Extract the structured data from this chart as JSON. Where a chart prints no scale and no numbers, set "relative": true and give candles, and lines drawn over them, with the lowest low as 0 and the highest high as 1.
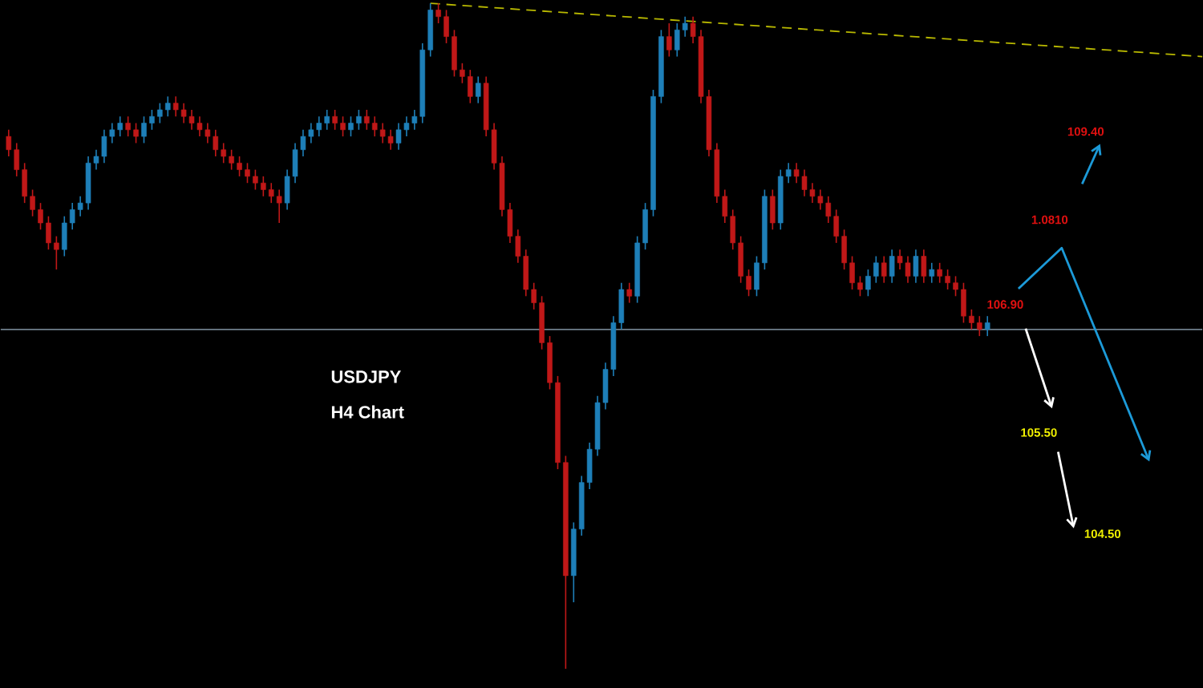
{
  "chart_data": {
    "type": "candlestick",
    "relative": true,
    "title": "USDJPY",
    "subtitle": "H4 Chart",
    "categories": [
      null,
      null,
      null,
      null,
      null,
      null,
      null,
      null,
      null,
      null,
      null,
      null,
      null,
      null,
      null,
      null,
      null,
      null,
      null,
      null,
      null,
      null,
      null,
      null,
      null,
      null,
      null,
      null,
      null,
      null,
      null,
      null,
      null,
      null,
      null,
      null,
      null,
      null,
      null,
      null,
      null,
      null,
      null,
      null,
      null,
      null,
      null,
      null,
      null,
      null,
      null,
      null,
      null,
      null,
      null,
      null,
      null,
      null,
      null,
      null,
      null,
      null,
      null,
      null,
      null,
      null,
      null,
      null,
      null,
      null,
      null,
      null,
      null,
      null,
      null,
      null,
      null,
      null,
      null,
      null,
      null,
      null,
      null,
      null,
      null,
      null,
      null,
      null,
      null,
      null,
      null,
      null,
      null,
      null,
      null,
      null,
      null,
      null,
      null,
      null,
      null,
      null,
      null,
      null,
      null,
      null,
      null,
      null,
      null,
      null,
      null,
      null,
      null,
      null,
      null,
      null,
      null,
      null,
      null,
      null,
      null,
      null,
      null,
      null,
      null,
      null,
      null,
      null,
      null,
      null,
      null,
      null,
      null,
      null,
      null,
      null,
      null,
      null,
      null,
      null,
      null,
      null,
      null,
      null,
      null,
      null,
      null,
      null,
      null,
      null,
      null
    ],
    "ohlc": [
      [
        0.8,
        0.81,
        0.77,
        0.78
      ],
      [
        0.78,
        0.79,
        0.74,
        0.75
      ],
      [
        0.75,
        0.76,
        0.7,
        0.71
      ],
      [
        0.71,
        0.72,
        0.68,
        0.69
      ],
      [
        0.69,
        0.7,
        0.66,
        0.67
      ],
      [
        0.67,
        0.68,
        0.63,
        0.64
      ],
      [
        0.64,
        0.65,
        0.6,
        0.63
      ],
      [
        0.63,
        0.68,
        0.62,
        0.67
      ],
      [
        0.67,
        0.7,
        0.66,
        0.69
      ],
      [
        0.69,
        0.71,
        0.68,
        0.7
      ],
      [
        0.7,
        0.77,
        0.69,
        0.76
      ],
      [
        0.76,
        0.78,
        0.75,
        0.77
      ],
      [
        0.77,
        0.81,
        0.76,
        0.8
      ],
      [
        0.8,
        0.82,
        0.79,
        0.81
      ],
      [
        0.81,
        0.83,
        0.8,
        0.82
      ],
      [
        0.82,
        0.83,
        0.8,
        0.81
      ],
      [
        0.81,
        0.82,
        0.79,
        0.8
      ],
      [
        0.8,
        0.83,
        0.79,
        0.82
      ],
      [
        0.82,
        0.84,
        0.81,
        0.83
      ],
      [
        0.83,
        0.85,
        0.82,
        0.84
      ],
      [
        0.84,
        0.86,
        0.83,
        0.85
      ],
      [
        0.85,
        0.86,
        0.83,
        0.84
      ],
      [
        0.84,
        0.85,
        0.82,
        0.83
      ],
      [
        0.83,
        0.84,
        0.81,
        0.82
      ],
      [
        0.82,
        0.83,
        0.8,
        0.81
      ],
      [
        0.81,
        0.82,
        0.79,
        0.8
      ],
      [
        0.8,
        0.81,
        0.77,
        0.78
      ],
      [
        0.78,
        0.79,
        0.76,
        0.77
      ],
      [
        0.77,
        0.78,
        0.75,
        0.76
      ],
      [
        0.76,
        0.77,
        0.74,
        0.75
      ],
      [
        0.75,
        0.76,
        0.73,
        0.74
      ],
      [
        0.74,
        0.75,
        0.72,
        0.73
      ],
      [
        0.73,
        0.74,
        0.71,
        0.72
      ],
      [
        0.72,
        0.73,
        0.7,
        0.71
      ],
      [
        0.71,
        0.72,
        0.67,
        0.7
      ],
      [
        0.7,
        0.75,
        0.69,
        0.74
      ],
      [
        0.74,
        0.79,
        0.73,
        0.78
      ],
      [
        0.78,
        0.81,
        0.77,
        0.8
      ],
      [
        0.8,
        0.82,
        0.79,
        0.81
      ],
      [
        0.81,
        0.83,
        0.8,
        0.82
      ],
      [
        0.82,
        0.84,
        0.81,
        0.83
      ],
      [
        0.83,
        0.84,
        0.81,
        0.82
      ],
      [
        0.82,
        0.83,
        0.8,
        0.81
      ],
      [
        0.81,
        0.83,
        0.8,
        0.82
      ],
      [
        0.82,
        0.84,
        0.81,
        0.83
      ],
      [
        0.83,
        0.84,
        0.81,
        0.82
      ],
      [
        0.82,
        0.83,
        0.8,
        0.81
      ],
      [
        0.81,
        0.82,
        0.79,
        0.8
      ],
      [
        0.8,
        0.81,
        0.78,
        0.79
      ],
      [
        0.79,
        0.82,
        0.78,
        0.81
      ],
      [
        0.81,
        0.83,
        0.8,
        0.82
      ],
      [
        0.82,
        0.84,
        0.81,
        0.83
      ],
      [
        0.83,
        0.94,
        0.82,
        0.93
      ],
      [
        0.93,
        1.0,
        0.92,
        0.99
      ],
      [
        0.99,
        1.0,
        0.97,
        0.98
      ],
      [
        0.98,
        0.99,
        0.94,
        0.95
      ],
      [
        0.95,
        0.96,
        0.89,
        0.9
      ],
      [
        0.9,
        0.91,
        0.88,
        0.89
      ],
      [
        0.89,
        0.9,
        0.85,
        0.86
      ],
      [
        0.86,
        0.89,
        0.85,
        0.88
      ],
      [
        0.88,
        0.89,
        0.8,
        0.81
      ],
      [
        0.81,
        0.82,
        0.75,
        0.76
      ],
      [
        0.76,
        0.77,
        0.68,
        0.69
      ],
      [
        0.69,
        0.7,
        0.64,
        0.65
      ],
      [
        0.65,
        0.66,
        0.61,
        0.62
      ],
      [
        0.62,
        0.63,
        0.56,
        0.57
      ],
      [
        0.57,
        0.58,
        0.54,
        0.55
      ],
      [
        0.55,
        0.56,
        0.48,
        0.49
      ],
      [
        0.49,
        0.5,
        0.42,
        0.43
      ],
      [
        0.43,
        0.44,
        0.3,
        0.31
      ],
      [
        0.31,
        0.32,
        0.0,
        0.14
      ],
      [
        0.14,
        0.22,
        0.1,
        0.21
      ],
      [
        0.21,
        0.29,
        0.2,
        0.28
      ],
      [
        0.28,
        0.34,
        0.27,
        0.33
      ],
      [
        0.33,
        0.41,
        0.32,
        0.4
      ],
      [
        0.4,
        0.46,
        0.39,
        0.45
      ],
      [
        0.45,
        0.53,
        0.44,
        0.52
      ],
      [
        0.52,
        0.58,
        0.51,
        0.57
      ],
      [
        0.57,
        0.58,
        0.55,
        0.56
      ],
      [
        0.56,
        0.65,
        0.55,
        0.64
      ],
      [
        0.64,
        0.7,
        0.63,
        0.69
      ],
      [
        0.69,
        0.87,
        0.68,
        0.86
      ],
      [
        0.86,
        0.96,
        0.85,
        0.95
      ],
      [
        0.95,
        0.97,
        0.92,
        0.93
      ],
      [
        0.93,
        0.97,
        0.92,
        0.96
      ],
      [
        0.96,
        0.98,
        0.95,
        0.97
      ],
      [
        0.97,
        0.98,
        0.94,
        0.95
      ],
      [
        0.95,
        0.96,
        0.85,
        0.86
      ],
      [
        0.86,
        0.87,
        0.77,
        0.78
      ],
      [
        0.78,
        0.79,
        0.7,
        0.71
      ],
      [
        0.71,
        0.72,
        0.67,
        0.68
      ],
      [
        0.68,
        0.69,
        0.63,
        0.64
      ],
      [
        0.64,
        0.65,
        0.58,
        0.59
      ],
      [
        0.59,
        0.6,
        0.56,
        0.57
      ],
      [
        0.57,
        0.62,
        0.56,
        0.61
      ],
      [
        0.61,
        0.72,
        0.6,
        0.71
      ],
      [
        0.71,
        0.72,
        0.66,
        0.67
      ],
      [
        0.67,
        0.75,
        0.66,
        0.74
      ],
      [
        0.74,
        0.76,
        0.73,
        0.75
      ],
      [
        0.75,
        0.76,
        0.73,
        0.74
      ],
      [
        0.74,
        0.75,
        0.71,
        0.72
      ],
      [
        0.72,
        0.73,
        0.7,
        0.71
      ],
      [
        0.71,
        0.72,
        0.69,
        0.7
      ],
      [
        0.7,
        0.71,
        0.67,
        0.68
      ],
      [
        0.68,
        0.69,
        0.64,
        0.65
      ],
      [
        0.65,
        0.66,
        0.6,
        0.61
      ],
      [
        0.61,
        0.62,
        0.57,
        0.58
      ],
      [
        0.58,
        0.59,
        0.56,
        0.57
      ],
      [
        0.57,
        0.6,
        0.56,
        0.59
      ],
      [
        0.59,
        0.62,
        0.58,
        0.61
      ],
      [
        0.61,
        0.62,
        0.58,
        0.59
      ],
      [
        0.59,
        0.63,
        0.58,
        0.62
      ],
      [
        0.62,
        0.63,
        0.6,
        0.61
      ],
      [
        0.61,
        0.62,
        0.58,
        0.59
      ],
      [
        0.59,
        0.63,
        0.58,
        0.62
      ],
      [
        0.62,
        0.63,
        0.58,
        0.59
      ],
      [
        0.59,
        0.61,
        0.58,
        0.6
      ],
      [
        0.6,
        0.61,
        0.58,
        0.59
      ],
      [
        0.59,
        0.6,
        0.57,
        0.58
      ],
      [
        0.58,
        0.59,
        0.56,
        0.57
      ],
      [
        0.57,
        0.58,
        0.52,
        0.53
      ],
      [
        0.53,
        0.54,
        0.51,
        0.52
      ],
      [
        0.52,
        0.53,
        0.5,
        0.51
      ],
      [
        0.51,
        0.53,
        0.5,
        0.52
      ],
      null,
      null,
      null,
      null,
      null,
      null,
      null,
      null,
      null,
      null,
      null,
      null,
      null,
      null,
      null,
      null,
      null,
      null,
      null,
      null,
      null,
      null,
      null,
      null,
      null,
      null,
      null
    ],
    "series": [
      {
        "type": "line",
        "values": [
          null,
          null,
          null,
          null,
          null,
          null,
          null,
          null,
          null,
          null,
          null,
          null,
          null,
          null,
          null,
          null,
          null,
          null,
          null,
          null,
          null,
          null,
          null,
          null,
          null,
          null,
          null,
          null,
          null,
          null,
          null,
          null,
          null,
          null,
          null,
          null,
          null,
          null,
          null,
          null,
          null,
          null,
          null,
          null,
          null,
          null,
          null,
          null,
          null,
          null,
          null,
          null,
          null,
          1.0,
          null,
          null,
          null,
          null,
          null,
          null,
          null,
          null,
          null,
          null,
          null,
          null,
          null,
          null,
          null,
          null,
          null,
          null,
          null,
          null,
          null,
          null,
          null,
          null,
          null,
          null,
          null,
          null,
          null,
          null,
          null,
          null,
          null,
          null,
          null,
          null,
          null,
          null,
          null,
          null,
          null,
          null,
          null,
          null,
          null,
          null,
          null,
          null,
          null,
          null,
          null,
          null,
          null,
          null,
          null,
          null,
          null,
          null,
          null,
          null,
          null,
          null,
          null,
          null,
          null,
          null,
          null,
          null,
          null,
          null,
          null,
          null,
          null,
          null,
          null,
          null,
          null,
          null,
          null,
          null,
          null,
          null,
          null,
          null,
          null,
          null,
          null,
          null,
          null,
          null,
          null,
          null,
          null,
          null,
          null,
          null,
          0.92
        ],
        "color": "#b8b800",
        "line_style": "dashed"
      }
    ],
    "ref_lines": [
      {
        "axis": "y",
        "value": 0.51,
        "color": "#6f7f8c"
      }
    ],
    "annotations": [
      "109.40",
      "1.0810",
      "106.90",
      "105.50",
      "104.50"
    ]
  }
}
